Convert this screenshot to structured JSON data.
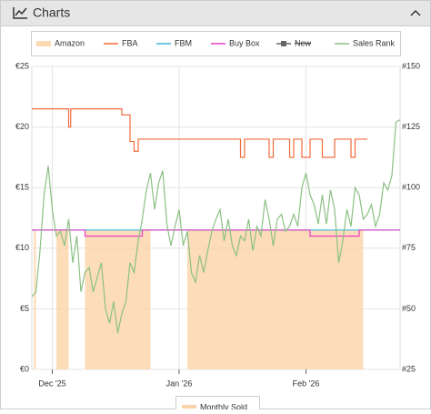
{
  "header": {
    "title": "Charts"
  },
  "chart_data": {
    "type": "line",
    "xlim": [
      0,
      90
    ],
    "xticks": [
      {
        "value": 5,
        "label": "Dec '25"
      },
      {
        "value": 36,
        "label": "Jan '26"
      },
      {
        "value": 67,
        "label": "Feb '26"
      }
    ],
    "ylim": [
      0,
      25
    ],
    "yticks": [
      {
        "value": 0,
        "label": "€0"
      },
      {
        "value": 5,
        "label": "€5"
      },
      {
        "value": 10,
        "label": "€10"
      },
      {
        "value": 15,
        "label": "€15"
      },
      {
        "value": 20,
        "label": "€20"
      },
      {
        "value": 25,
        "label": "€25"
      }
    ],
    "y2lim": [
      25,
      150
    ],
    "y2ticks": [
      {
        "value": 25,
        "label": "#25"
      },
      {
        "value": 50,
        "label": "#50"
      },
      {
        "value": 75,
        "label": "#75"
      },
      {
        "value": 100,
        "label": "#100"
      },
      {
        "value": 125,
        "label": "#125"
      },
      {
        "value": 150,
        "label": "#150"
      }
    ],
    "grid": true,
    "series": [
      {
        "name": "Amazon",
        "color": "#fbd9b3",
        "kind": "swatch",
        "x": [],
        "values": []
      },
      {
        "name": "FBA",
        "color": "#f26c3c",
        "x": [
          0,
          9,
          9,
          9.5,
          9.5,
          22,
          22,
          24,
          24,
          25,
          25,
          26,
          26,
          51,
          51,
          52,
          52,
          58,
          58,
          59,
          59,
          63,
          63,
          64,
          64,
          66,
          66,
          68,
          68,
          71,
          71,
          74,
          74,
          78,
          78,
          79,
          79,
          82
        ],
        "values": [
          21.5,
          21.5,
          20,
          20,
          21.5,
          21.5,
          21,
          21,
          18.8,
          18.8,
          18,
          18,
          19,
          19,
          17.5,
          17.5,
          19,
          19,
          17.5,
          17.5,
          19,
          19,
          17.5,
          17.5,
          19,
          19,
          17.5,
          17.5,
          19,
          19,
          17.5,
          17.5,
          19,
          19,
          17.5,
          17.5,
          19,
          19
        ]
      },
      {
        "name": "FBM",
        "color": "#3bb6dc",
        "x": [
          0,
          90
        ],
        "values": [
          11.5,
          11.5
        ]
      },
      {
        "name": "Buy Box",
        "color": "#e83ec4",
        "x": [
          0,
          13,
          13,
          27,
          27,
          68,
          68,
          80,
          80,
          90
        ],
        "values": [
          11.5,
          11.5,
          11,
          11,
          11.5,
          11.5,
          11,
          11,
          11.5,
          11.5
        ]
      },
      {
        "name": "New",
        "color": "#666666",
        "hidden": true,
        "x": [],
        "values": []
      },
      {
        "name": "Sales Rank",
        "color": "#8cc084",
        "axis": "y2",
        "x": [
          0,
          1,
          2,
          3,
          4,
          5,
          6,
          7,
          8,
          9,
          10,
          11,
          12,
          13,
          14,
          15,
          16,
          17,
          18,
          19,
          20,
          21,
          22,
          23,
          24,
          25,
          26,
          27,
          28,
          29,
          30,
          31,
          32,
          33,
          34,
          35,
          36,
          37,
          38,
          39,
          40,
          41,
          42,
          43,
          44,
          45,
          46,
          47,
          48,
          49,
          50,
          51,
          52,
          53,
          54,
          55,
          56,
          57,
          58,
          59,
          60,
          61,
          62,
          63,
          64,
          65,
          66,
          67,
          68,
          69,
          70,
          71,
          72,
          73,
          74,
          75,
          76,
          77,
          78,
          79,
          80,
          81,
          82,
          83,
          84,
          85,
          86,
          87,
          88,
          89,
          90
        ],
        "values": [
          55,
          57,
          74,
          97,
          109,
          91,
          80,
          82,
          76,
          87,
          69,
          80,
          57,
          65,
          67,
          57,
          63,
          69,
          50,
          44,
          53,
          40,
          48,
          53,
          69,
          65,
          78,
          87,
          99,
          106,
          91,
          102,
          107,
          85,
          76,
          84,
          91,
          76,
          82,
          65,
          61,
          72,
          65,
          74,
          82,
          87,
          91,
          78,
          87,
          76,
          72,
          80,
          78,
          87,
          74,
          84,
          80,
          95,
          87,
          76,
          87,
          89,
          82,
          84,
          89,
          84,
          100,
          106,
          97,
          93,
          85,
          97,
          85,
          99,
          91,
          69,
          78,
          91,
          84,
          100,
          97,
          87,
          89,
          93,
          84,
          89,
          102,
          99,
          105,
          127,
          128
        ]
      },
      {
        "name": "Monthly Sold",
        "color": "#fbd3a8",
        "kind": "area",
        "x": [
          0.5,
          1,
          1,
          6,
          9,
          9,
          13,
          29,
          29,
          38,
          81
        ],
        "values": [
          11.5,
          11.5,
          null,
          11.5,
          11.5,
          null,
          11.5,
          11.5,
          null,
          11.5,
          11.5
        ]
      }
    ]
  }
}
